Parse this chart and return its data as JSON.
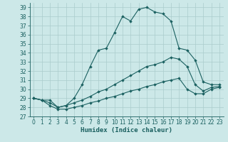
{
  "xlabel": "Humidex (Indice chaleur)",
  "xlim": [
    -0.5,
    23.5
  ],
  "ylim": [
    27,
    39.5
  ],
  "yticks": [
    27,
    28,
    29,
    30,
    31,
    32,
    33,
    34,
    35,
    36,
    37,
    38,
    39
  ],
  "xticks": [
    0,
    1,
    2,
    3,
    4,
    5,
    6,
    7,
    8,
    9,
    10,
    11,
    12,
    13,
    14,
    15,
    16,
    17,
    18,
    19,
    20,
    21,
    22,
    23
  ],
  "bg_color": "#cce8e8",
  "grid_color": "#aacccc",
  "line_color": "#1a6060",
  "line1": [
    29.0,
    28.8,
    28.8,
    28.0,
    28.2,
    29.0,
    30.5,
    32.5,
    34.3,
    34.5,
    36.2,
    38.0,
    37.5,
    38.8,
    39.0,
    38.5,
    38.3,
    37.5,
    34.5,
    34.3,
    33.2,
    30.8,
    30.5,
    30.5
  ],
  "line2": [
    29.0,
    28.8,
    28.5,
    28.0,
    28.2,
    28.5,
    28.8,
    29.2,
    29.7,
    30.0,
    30.5,
    31.0,
    31.5,
    32.0,
    32.5,
    32.7,
    33.0,
    33.5,
    33.3,
    32.5,
    30.5,
    29.8,
    30.2,
    30.3
  ],
  "line3": [
    29.0,
    28.8,
    28.2,
    27.8,
    27.8,
    28.0,
    28.2,
    28.5,
    28.7,
    29.0,
    29.2,
    29.5,
    29.8,
    30.0,
    30.3,
    30.5,
    30.8,
    31.0,
    31.2,
    30.0,
    29.5,
    29.5,
    30.0,
    30.2
  ],
  "lw": 0.8,
  "ms": 2.0,
  "tick_fontsize": 5.5,
  "xlabel_fontsize": 6.5
}
